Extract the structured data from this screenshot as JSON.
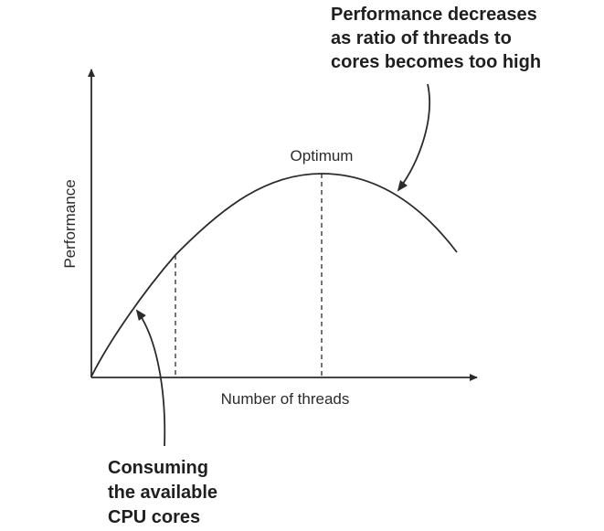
{
  "diagram": {
    "ylabel": "Performance",
    "xlabel": "Number of threads",
    "peak_label": "Optimum",
    "callout_top": {
      "lines": [
        "Performance decreases",
        "as ratio of threads to",
        "cores becomes too high"
      ]
    },
    "callout_bottom": {
      "lines": [
        "Consuming",
        "the available",
        "CPU cores"
      ]
    },
    "colors": {
      "line": "#2b2b2b",
      "text": "#1f1f1f"
    }
  }
}
